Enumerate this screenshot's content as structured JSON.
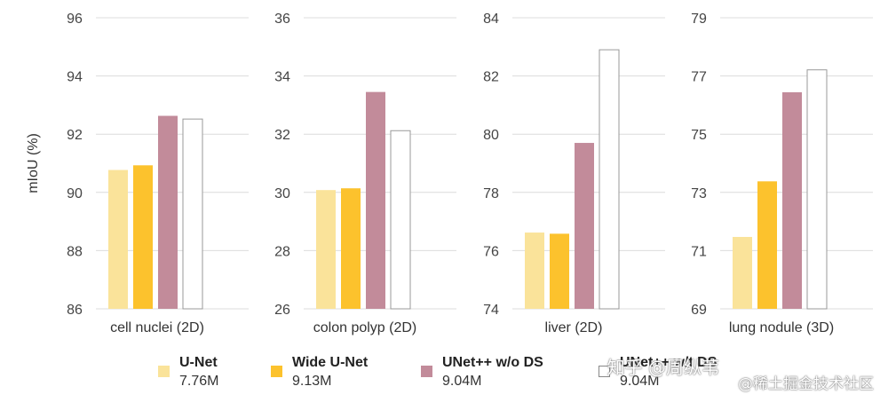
{
  "colors": {
    "unet": "#fae39a",
    "wide_unet": "#fcc22d",
    "unetpp_wo_ds": "#c28b9a",
    "unetpp_wt_ds": "#ffffff",
    "outline": "#b0b0b0",
    "grid": "#dcdcdc"
  },
  "chart_data": {
    "type": "bar",
    "ylabel": "mIoU (%)",
    "grid": true,
    "legend_position": "bottom",
    "series": [
      {
        "name": "U-Net",
        "params": "7.76M"
      },
      {
        "name": "Wide U-Net",
        "params": "9.13M"
      },
      {
        "name": "UNet++ w/o DS",
        "params": "9.04M"
      },
      {
        "name": "UNet++ w/t DS",
        "params": "9.04M"
      }
    ],
    "panels": [
      {
        "category": "cell nuclei (2D)",
        "ylim": [
          86,
          96
        ],
        "ticks": [
          "86",
          "88",
          "90",
          "92",
          "94",
          "96"
        ],
        "values": [
          90.77,
          90.93,
          92.63,
          92.52
        ]
      },
      {
        "category": "colon polyp (2D)",
        "ylim": [
          26,
          36
        ],
        "ticks": [
          "26",
          "28",
          "30",
          "32",
          "34",
          "36"
        ],
        "values": [
          30.08,
          30.14,
          33.45,
          32.12
        ]
      },
      {
        "category": "liver (2D)",
        "ylim": [
          74,
          84
        ],
        "ticks": [
          "74",
          "76",
          "78",
          "80",
          "82",
          "84"
        ],
        "values": [
          76.62,
          76.58,
          79.7,
          82.9
        ]
      },
      {
        "category": "lung nodule (3D)",
        "ylim": [
          69,
          79
        ],
        "ticks": [
          "69",
          "71",
          "73",
          "75",
          "77",
          "79"
        ],
        "values": [
          71.47,
          73.38,
          76.44,
          77.21
        ]
      }
    ]
  },
  "watermark": {
    "line1": "知乎 @周纵苇",
    "line2": "@稀土掘金技术社区"
  }
}
